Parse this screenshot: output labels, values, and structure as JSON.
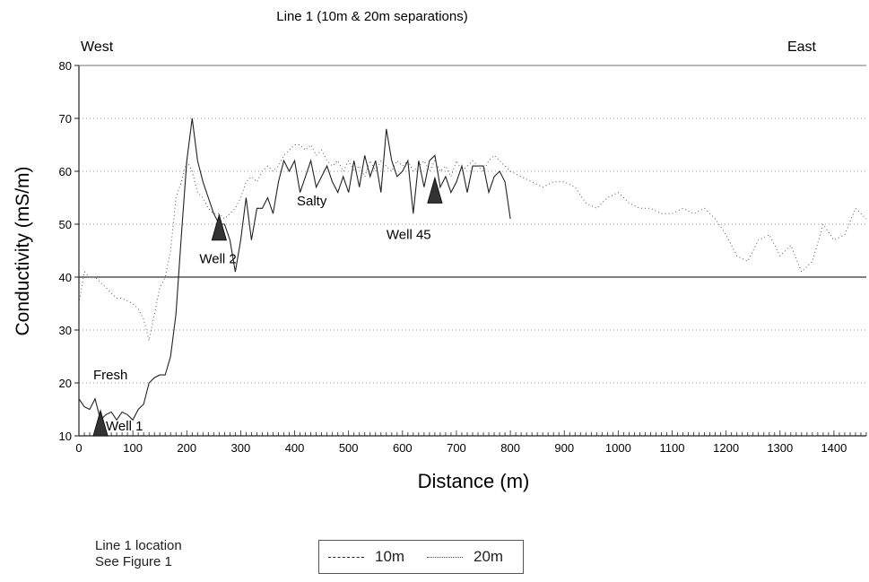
{
  "chart_data": {
    "type": "line",
    "title": "Line 1 (10m & 20m separations)",
    "xlabel": "Distance (m)",
    "ylabel": "Conductivity (mS/m)",
    "xlim": [
      0,
      1460
    ],
    "ylim": [
      10,
      80
    ],
    "x_ticks": [
      0,
      100,
      200,
      300,
      400,
      500,
      600,
      700,
      800,
      900,
      1000,
      1100,
      1200,
      1300,
      1400
    ],
    "y_ticks": [
      10,
      20,
      30,
      40,
      50,
      60,
      70,
      80
    ],
    "grid": "horizontal dotted",
    "legend_position": "bottom",
    "series": [
      {
        "name": "10m",
        "style": "solid",
        "color": "#222222",
        "points": [
          [
            0,
            17
          ],
          [
            10,
            15.5
          ],
          [
            20,
            15
          ],
          [
            30,
            17
          ],
          [
            40,
            13
          ],
          [
            50,
            14
          ],
          [
            60,
            14.5
          ],
          [
            70,
            13
          ],
          [
            80,
            14.5
          ],
          [
            90,
            14
          ],
          [
            100,
            13
          ],
          [
            110,
            15
          ],
          [
            120,
            16
          ],
          [
            130,
            20
          ],
          [
            140,
            21
          ],
          [
            150,
            21.5
          ],
          [
            160,
            21.5
          ],
          [
            170,
            25
          ],
          [
            180,
            33
          ],
          [
            190,
            48
          ],
          [
            200,
            62
          ],
          [
            210,
            70
          ],
          [
            220,
            62
          ],
          [
            230,
            58
          ],
          [
            240,
            55
          ],
          [
            250,
            52
          ],
          [
            260,
            50
          ],
          [
            270,
            50
          ],
          [
            280,
            47
          ],
          [
            290,
            41
          ],
          [
            300,
            47
          ],
          [
            310,
            55
          ],
          [
            320,
            47
          ],
          [
            330,
            53
          ],
          [
            340,
            53
          ],
          [
            350,
            55
          ],
          [
            360,
            52
          ],
          [
            370,
            58
          ],
          [
            380,
            62
          ],
          [
            390,
            60
          ],
          [
            400,
            62
          ],
          [
            410,
            56
          ],
          [
            420,
            59
          ],
          [
            430,
            62
          ],
          [
            440,
            57
          ],
          [
            450,
            59
          ],
          [
            460,
            61
          ],
          [
            470,
            58
          ],
          [
            480,
            56
          ],
          [
            490,
            59
          ],
          [
            500,
            56
          ],
          [
            510,
            62
          ],
          [
            520,
            57
          ],
          [
            530,
            63
          ],
          [
            540,
            59
          ],
          [
            550,
            62
          ],
          [
            560,
            56
          ],
          [
            570,
            68
          ],
          [
            580,
            62
          ],
          [
            590,
            59
          ],
          [
            600,
            60
          ],
          [
            610,
            62
          ],
          [
            620,
            52
          ],
          [
            630,
            62
          ],
          [
            640,
            57
          ],
          [
            650,
            62
          ],
          [
            660,
            63
          ],
          [
            670,
            57
          ],
          [
            680,
            59
          ],
          [
            690,
            56
          ],
          [
            700,
            58
          ],
          [
            710,
            61
          ],
          [
            720,
            56
          ],
          [
            730,
            61
          ],
          [
            740,
            61
          ],
          [
            750,
            61
          ],
          [
            760,
            56
          ],
          [
            770,
            59
          ],
          [
            780,
            60
          ],
          [
            790,
            58
          ],
          [
            800,
            51
          ]
        ]
      },
      {
        "name": "20m",
        "style": "dotted",
        "color": "#555555",
        "points": [
          [
            0,
            35
          ],
          [
            10,
            41
          ],
          [
            20,
            40
          ],
          [
            30,
            40
          ],
          [
            40,
            39
          ],
          [
            50,
            38
          ],
          [
            60,
            37
          ],
          [
            70,
            36
          ],
          [
            80,
            36
          ],
          [
            90,
            35.5
          ],
          [
            100,
            35
          ],
          [
            110,
            34
          ],
          [
            120,
            32
          ],
          [
            130,
            28
          ],
          [
            140,
            33
          ],
          [
            150,
            38
          ],
          [
            160,
            40
          ],
          [
            170,
            45
          ],
          [
            180,
            55
          ],
          [
            190,
            58
          ],
          [
            200,
            62
          ],
          [
            210,
            60
          ],
          [
            220,
            56
          ],
          [
            230,
            55
          ],
          [
            240,
            53
          ],
          [
            250,
            52
          ],
          [
            260,
            52
          ],
          [
            270,
            51
          ],
          [
            280,
            52
          ],
          [
            290,
            53
          ],
          [
            300,
            55
          ],
          [
            310,
            58
          ],
          [
            320,
            59
          ],
          [
            330,
            58
          ],
          [
            340,
            60
          ],
          [
            350,
            61
          ],
          [
            360,
            60
          ],
          [
            370,
            61
          ],
          [
            380,
            63
          ],
          [
            390,
            64
          ],
          [
            400,
            65
          ],
          [
            410,
            65
          ],
          [
            420,
            64
          ],
          [
            430,
            65
          ],
          [
            440,
            63
          ],
          [
            450,
            64
          ],
          [
            460,
            62
          ],
          [
            470,
            61
          ],
          [
            480,
            62
          ],
          [
            490,
            60
          ],
          [
            500,
            62
          ],
          [
            510,
            60
          ],
          [
            520,
            61
          ],
          [
            530,
            59
          ],
          [
            540,
            62
          ],
          [
            550,
            60
          ],
          [
            560,
            62
          ],
          [
            570,
            61
          ],
          [
            580,
            60
          ],
          [
            590,
            62
          ],
          [
            600,
            61
          ],
          [
            610,
            62
          ],
          [
            620,
            60
          ],
          [
            630,
            61
          ],
          [
            640,
            62
          ],
          [
            650,
            60
          ],
          [
            660,
            62
          ],
          [
            670,
            60
          ],
          [
            680,
            61
          ],
          [
            690,
            59
          ],
          [
            700,
            62
          ],
          [
            710,
            60
          ],
          [
            720,
            61
          ],
          [
            730,
            62
          ],
          [
            740,
            61
          ],
          [
            750,
            60
          ],
          [
            760,
            62
          ],
          [
            770,
            63
          ],
          [
            780,
            62
          ],
          [
            790,
            61
          ],
          [
            800,
            60
          ],
          [
            820,
            59
          ],
          [
            840,
            58
          ],
          [
            860,
            57
          ],
          [
            880,
            58
          ],
          [
            900,
            58
          ],
          [
            920,
            57
          ],
          [
            940,
            54
          ],
          [
            960,
            53
          ],
          [
            980,
            55
          ],
          [
            1000,
            56
          ],
          [
            1020,
            54
          ],
          [
            1040,
            53
          ],
          [
            1060,
            53
          ],
          [
            1080,
            52
          ],
          [
            1100,
            52
          ],
          [
            1120,
            53
          ],
          [
            1140,
            52
          ],
          [
            1160,
            53
          ],
          [
            1180,
            51
          ],
          [
            1200,
            48
          ],
          [
            1220,
            44
          ],
          [
            1240,
            43
          ],
          [
            1260,
            47
          ],
          [
            1280,
            48
          ],
          [
            1300,
            44
          ],
          [
            1320,
            46
          ],
          [
            1340,
            41
          ],
          [
            1360,
            43
          ],
          [
            1380,
            50
          ],
          [
            1400,
            47
          ],
          [
            1420,
            48
          ],
          [
            1440,
            53
          ],
          [
            1460,
            51
          ]
        ]
      }
    ],
    "reference_line": {
      "y": 40
    }
  },
  "annotations": {
    "west": "West",
    "east": "East",
    "fresh": "Fresh",
    "salty": "Salty",
    "wells": [
      {
        "label": "Well 1",
        "x": 40,
        "y": 10
      },
      {
        "label": "Well 2",
        "x": 260,
        "y": 47
      },
      {
        "label": "Well 45",
        "x": 660,
        "y": 54
      }
    ]
  },
  "footer": {
    "location_line1": "Line 1 location",
    "location_line2": "See Figure 1"
  },
  "legend": {
    "item_10m": "10m",
    "item_20m": "20m"
  }
}
